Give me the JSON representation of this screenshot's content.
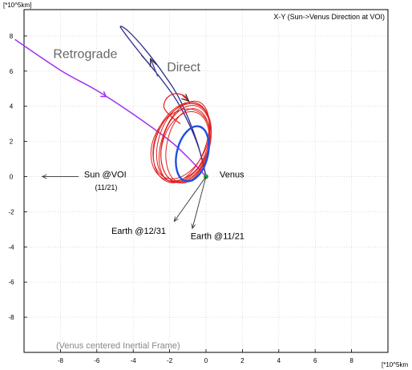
{
  "chart_data": {
    "type": "line",
    "title": "X-Y (Sun->Venus Direction at VOI)",
    "x_unit_label": "[*10^5km",
    "y_unit_label": "[*10^5km]",
    "frame_note": "(Venus centered Inertial Frame)",
    "xlim": [
      -10,
      10
    ],
    "ylim": [
      -10,
      9.5
    ],
    "x_ticks": [
      -8,
      -6,
      -4,
      -2,
      0,
      2,
      4,
      6,
      8
    ],
    "y_ticks": [
      8,
      6,
      4,
      2,
      0,
      -2,
      -4,
      -6,
      -8
    ],
    "grid": true,
    "colors": {
      "approach": "#a030f0",
      "retrograde": "#2c2c90",
      "direct_arrow": "#5050b0",
      "capture_orbits": "#e02020",
      "final_orbit": "#2050e0",
      "venus_marker": "#20a040",
      "arrows": "#333333",
      "axis": "#000000",
      "grid": "#c8c8c8",
      "annotation_text": "#666666"
    },
    "series": [
      {
        "key": "approach",
        "x": [
          -10.5,
          -8.0,
          -6.0,
          -4.0,
          -2.0,
          -1.0,
          0.0
        ],
        "y": [
          7.8,
          6.05,
          4.9,
          3.55,
          2.05,
          1.1,
          0.0
        ]
      },
      {
        "key": "retrograde",
        "x": [
          0.0,
          -0.3,
          -0.8,
          -1.6,
          -2.5,
          -3.6,
          -4.5,
          -4.7,
          -4.3,
          -3.4,
          -2.3,
          -1.4,
          -0.5,
          0.0
        ],
        "y": [
          0.0,
          1.3,
          2.7,
          4.3,
          5.6,
          7.0,
          8.2,
          8.55,
          8.3,
          7.3,
          5.8,
          4.3,
          2.0,
          0.0
        ]
      },
      {
        "key": "capture_orbits",
        "orbits": [
          {
            "cx": -1.25,
            "cy": 1.95,
            "rx": 1.35,
            "ry": 2.35,
            "rot": -18
          },
          {
            "cx": -1.3,
            "cy": 1.9,
            "rx": 1.45,
            "ry": 2.35,
            "rot": -22
          },
          {
            "cx": -1.1,
            "cy": 1.85,
            "rx": 1.3,
            "ry": 2.25,
            "rot": -15
          },
          {
            "cx": -1.4,
            "cy": 1.8,
            "rx": 1.5,
            "ry": 2.15,
            "rot": -26
          },
          {
            "cx": -1.2,
            "cy": 2.0,
            "rx": 1.2,
            "ry": 2.4,
            "rot": -20
          },
          {
            "cx": -1.0,
            "cy": 1.75,
            "rx": 1.15,
            "ry": 2.15,
            "rot": -12
          },
          {
            "cx": -1.35,
            "cy": 2.05,
            "rx": 1.4,
            "ry": 2.3,
            "rot": -24
          },
          {
            "cx": -1.15,
            "cy": 1.7,
            "rx": 1.25,
            "ry": 2.05,
            "rot": -17
          }
        ],
        "hook": {
          "x": [
            -1.4,
            -1.9,
            -2.3,
            -2.2,
            -1.8,
            -1.3,
            -1.0,
            -0.9
          ],
          "y": [
            3.0,
            3.4,
            3.9,
            4.4,
            4.7,
            4.65,
            4.4,
            4.15
          ]
        }
      },
      {
        "key": "final_orbit",
        "orbit": {
          "cx": -0.75,
          "cy": 1.3,
          "rx": 0.85,
          "ry": 1.6,
          "rot": -14
        }
      }
    ],
    "annotations": [
      {
        "key": "retrograde_label",
        "text": "Retrograde",
        "x": -8.4,
        "y": 6.75
      },
      {
        "key": "direct_label",
        "text": "Direct",
        "x": -2.15,
        "y": 6.0
      },
      {
        "key": "venus_label",
        "text": "Venus",
        "x": 0.75,
        "y": -0.05
      },
      {
        "key": "sun_label",
        "text": "Sun @VOI",
        "x": -6.7,
        "y": -0.05
      },
      {
        "key": "sun_date",
        "text": "(11/21)",
        "x": -6.1,
        "y": -0.75
      },
      {
        "key": "earth1231_label",
        "text": "Earth @12/31",
        "x": -5.2,
        "y": -3.25
      },
      {
        "key": "earth1121_label",
        "text": "Earth @11/21",
        "x": -0.85,
        "y": -3.55
      }
    ]
  }
}
